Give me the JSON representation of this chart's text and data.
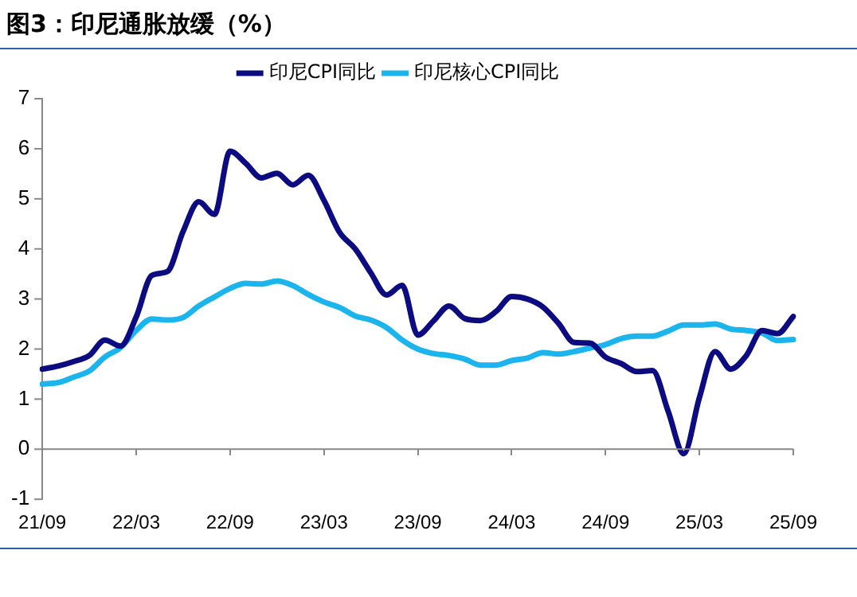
{
  "chart_data": {
    "type": "line",
    "title": "图3：印尼通胀放缓（%）",
    "categories": [
      "21/09",
      null,
      null,
      null,
      null,
      null,
      "22/03",
      null,
      null,
      null,
      null,
      null,
      "22/09",
      null,
      null,
      null,
      null,
      null,
      "23/03",
      null,
      null,
      null,
      null,
      null,
      "23/09",
      null,
      null,
      null,
      null,
      null,
      "24/03",
      null,
      null,
      null,
      null,
      null,
      "24/09",
      null,
      null,
      null,
      null,
      null,
      "25/03",
      null,
      null,
      null,
      null,
      null,
      "25/09"
    ],
    "series": [
      {
        "name": "印尼CPI同比",
        "color": "#0c0c80",
        "values": [
          1.6,
          1.66,
          1.75,
          1.87,
          2.18,
          2.06,
          2.64,
          3.47,
          3.55,
          4.35,
          4.94,
          4.69,
          5.95,
          5.71,
          5.42,
          5.51,
          5.28,
          5.47,
          4.97,
          4.33,
          4.0,
          3.52,
          3.08,
          3.27,
          2.28,
          2.56,
          2.86,
          2.61,
          2.57,
          2.75,
          3.05,
          3.0,
          2.84,
          2.51,
          2.13,
          2.12,
          1.84,
          1.71,
          1.55,
          1.57,
          0.76,
          -0.09,
          1.03,
          1.95,
          1.6,
          1.87,
          2.37,
          2.31,
          2.65
        ]
      },
      {
        "name": "印尼核心CPI同比",
        "color": "#1cb4ec",
        "values": [
          1.3,
          1.33,
          1.44,
          1.56,
          1.84,
          2.03,
          2.37,
          2.6,
          2.58,
          2.63,
          2.86,
          3.04,
          3.21,
          3.31,
          3.3,
          3.36,
          3.27,
          3.09,
          2.94,
          2.83,
          2.66,
          2.58,
          2.43,
          2.18,
          2.0,
          1.91,
          1.87,
          1.8,
          1.68,
          1.68,
          1.77,
          1.82,
          1.93,
          1.9,
          1.95,
          2.02,
          2.09,
          2.21,
          2.26,
          2.26,
          2.36,
          2.48,
          2.48,
          2.5,
          2.4,
          2.37,
          2.32,
          2.17,
          2.19
        ]
      }
    ],
    "ref_lines": [
      {
        "axis": "y",
        "value": 0,
        "color": "#888888",
        "line_style": "solid"
      }
    ],
    "ylim": [
      -1,
      7
    ],
    "yticks": [
      -1,
      0,
      1,
      2,
      3,
      4,
      5,
      6,
      7
    ],
    "grid": false,
    "legend": "top",
    "marker": "none",
    "line_style": "solid"
  }
}
